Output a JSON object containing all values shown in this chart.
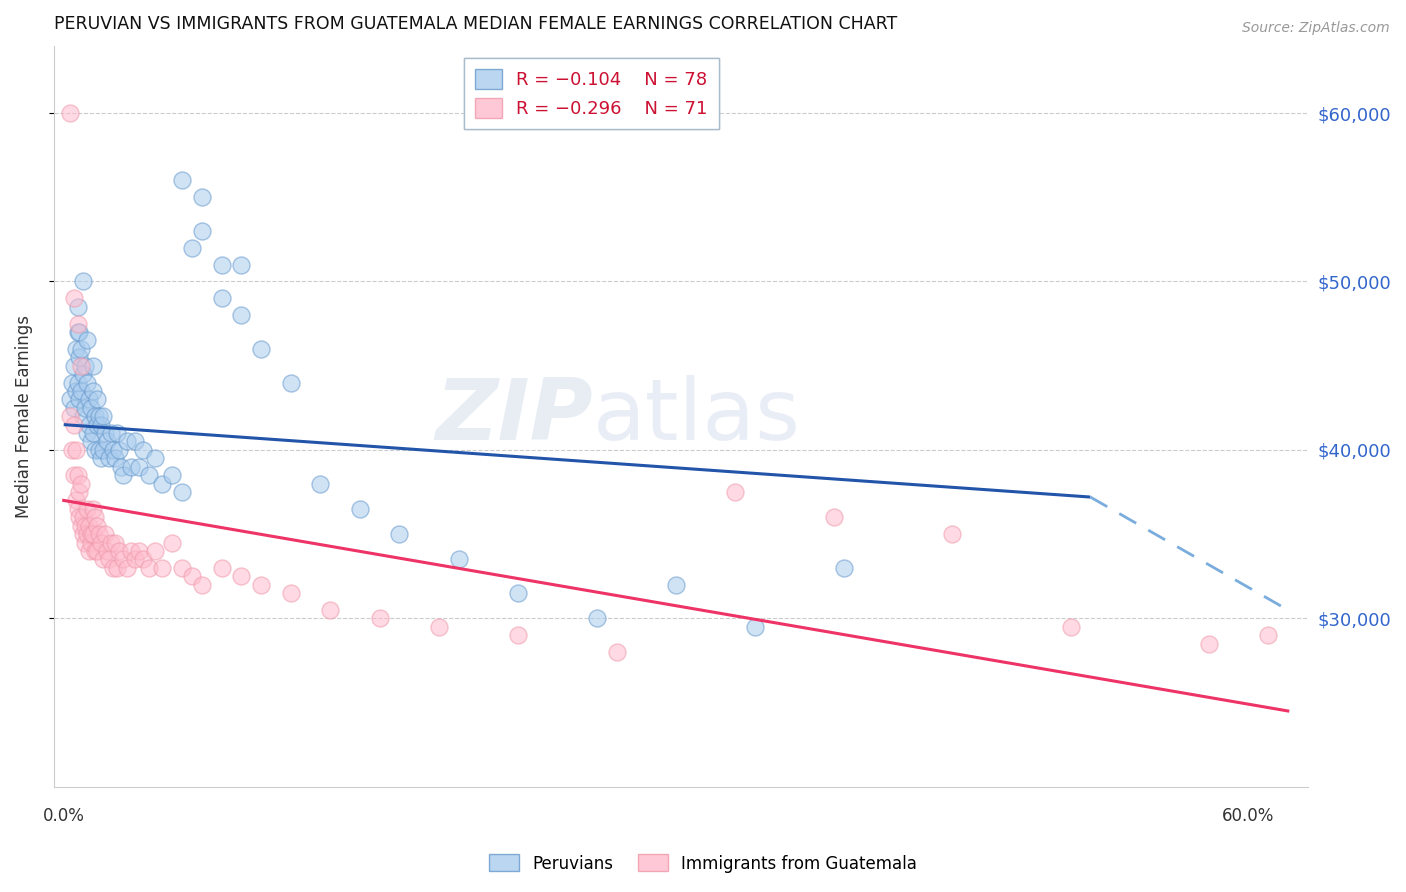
{
  "title": "PERUVIAN VS IMMIGRANTS FROM GUATEMALA MEDIAN FEMALE EARNINGS CORRELATION CHART",
  "source": "Source: ZipAtlas.com",
  "ylabel": "Median Female Earnings",
  "ytick_labels": [
    "$60,000",
    "$50,000",
    "$40,000",
    "$30,000"
  ],
  "ytick_values": [
    60000,
    50000,
    40000,
    30000
  ],
  "ylim": [
    20000,
    64000
  ],
  "xlim": [
    -0.005,
    0.63
  ],
  "xtick_left": "0.0%",
  "xtick_right": "60.0%",
  "legend_labels": [
    "Peruvians",
    "Immigrants from Guatemala"
  ],
  "watermark_zip": "ZIP",
  "watermark_atlas": "atlas",
  "blue_solid": {
    "x": [
      0.0,
      0.52
    ],
    "y": [
      41500,
      37200
    ]
  },
  "blue_dashed": {
    "x": [
      0.52,
      0.62
    ],
    "y": [
      37200,
      30500
    ]
  },
  "pink_solid": {
    "x": [
      0.0,
      0.62
    ],
    "y": [
      37000,
      24500
    ]
  },
  "blue_x": [
    0.003,
    0.004,
    0.005,
    0.005,
    0.006,
    0.006,
    0.007,
    0.007,
    0.007,
    0.008,
    0.008,
    0.008,
    0.009,
    0.009,
    0.01,
    0.01,
    0.01,
    0.011,
    0.011,
    0.012,
    0.012,
    0.012,
    0.013,
    0.013,
    0.014,
    0.014,
    0.015,
    0.015,
    0.015,
    0.016,
    0.016,
    0.017,
    0.017,
    0.018,
    0.018,
    0.019,
    0.019,
    0.02,
    0.02,
    0.021,
    0.022,
    0.023,
    0.024,
    0.025,
    0.026,
    0.027,
    0.028,
    0.029,
    0.03,
    0.032,
    0.034,
    0.036,
    0.038,
    0.04,
    0.043,
    0.046,
    0.05,
    0.055,
    0.06,
    0.065,
    0.07,
    0.08,
    0.09,
    0.1,
    0.115,
    0.13,
    0.15,
    0.17,
    0.2,
    0.23,
    0.27,
    0.31,
    0.35,
    0.395,
    0.06,
    0.07,
    0.08,
    0.09
  ],
  "blue_y": [
    43000,
    44000,
    42500,
    45000,
    43500,
    46000,
    44000,
    47000,
    48500,
    43000,
    45500,
    47000,
    46000,
    43500,
    42000,
    44500,
    50000,
    42500,
    45000,
    41000,
    44000,
    46500,
    43000,
    41500,
    40500,
    42500,
    41000,
    43500,
    45000,
    42000,
    40000,
    41500,
    43000,
    40000,
    42000,
    39500,
    41500,
    40000,
    42000,
    41000,
    40500,
    39500,
    41000,
    40000,
    39500,
    41000,
    40000,
    39000,
    38500,
    40500,
    39000,
    40500,
    39000,
    40000,
    38500,
    39500,
    38000,
    38500,
    37500,
    52000,
    55000,
    51000,
    48000,
    46000,
    44000,
    38000,
    36500,
    35000,
    33500,
    31500,
    30000,
    32000,
    29500,
    33000,
    56000,
    53000,
    49000,
    51000
  ],
  "pink_x": [
    0.003,
    0.004,
    0.005,
    0.005,
    0.006,
    0.006,
    0.007,
    0.007,
    0.008,
    0.008,
    0.009,
    0.009,
    0.01,
    0.01,
    0.011,
    0.011,
    0.012,
    0.012,
    0.013,
    0.013,
    0.014,
    0.014,
    0.015,
    0.015,
    0.016,
    0.016,
    0.017,
    0.017,
    0.018,
    0.019,
    0.02,
    0.021,
    0.022,
    0.023,
    0.024,
    0.025,
    0.026,
    0.027,
    0.028,
    0.03,
    0.032,
    0.034,
    0.036,
    0.038,
    0.04,
    0.043,
    0.046,
    0.05,
    0.055,
    0.06,
    0.065,
    0.07,
    0.08,
    0.09,
    0.1,
    0.115,
    0.135,
    0.16,
    0.19,
    0.23,
    0.28,
    0.34,
    0.39,
    0.45,
    0.51,
    0.58,
    0.61,
    0.003,
    0.005,
    0.007,
    0.009
  ],
  "pink_y": [
    42000,
    40000,
    38500,
    41500,
    37000,
    40000,
    36500,
    38500,
    36000,
    37500,
    35500,
    38000,
    36000,
    35000,
    35500,
    34500,
    35000,
    36500,
    34000,
    35500,
    34500,
    35000,
    36500,
    35000,
    34000,
    36000,
    35500,
    34000,
    35000,
    34500,
    33500,
    35000,
    34000,
    33500,
    34500,
    33000,
    34500,
    33000,
    34000,
    33500,
    33000,
    34000,
    33500,
    34000,
    33500,
    33000,
    34000,
    33000,
    34500,
    33000,
    32500,
    32000,
    33000,
    32500,
    32000,
    31500,
    30500,
    30000,
    29500,
    29000,
    28000,
    37500,
    36000,
    35000,
    29500,
    28500,
    29000,
    60000,
    49000,
    47500,
    45000
  ]
}
